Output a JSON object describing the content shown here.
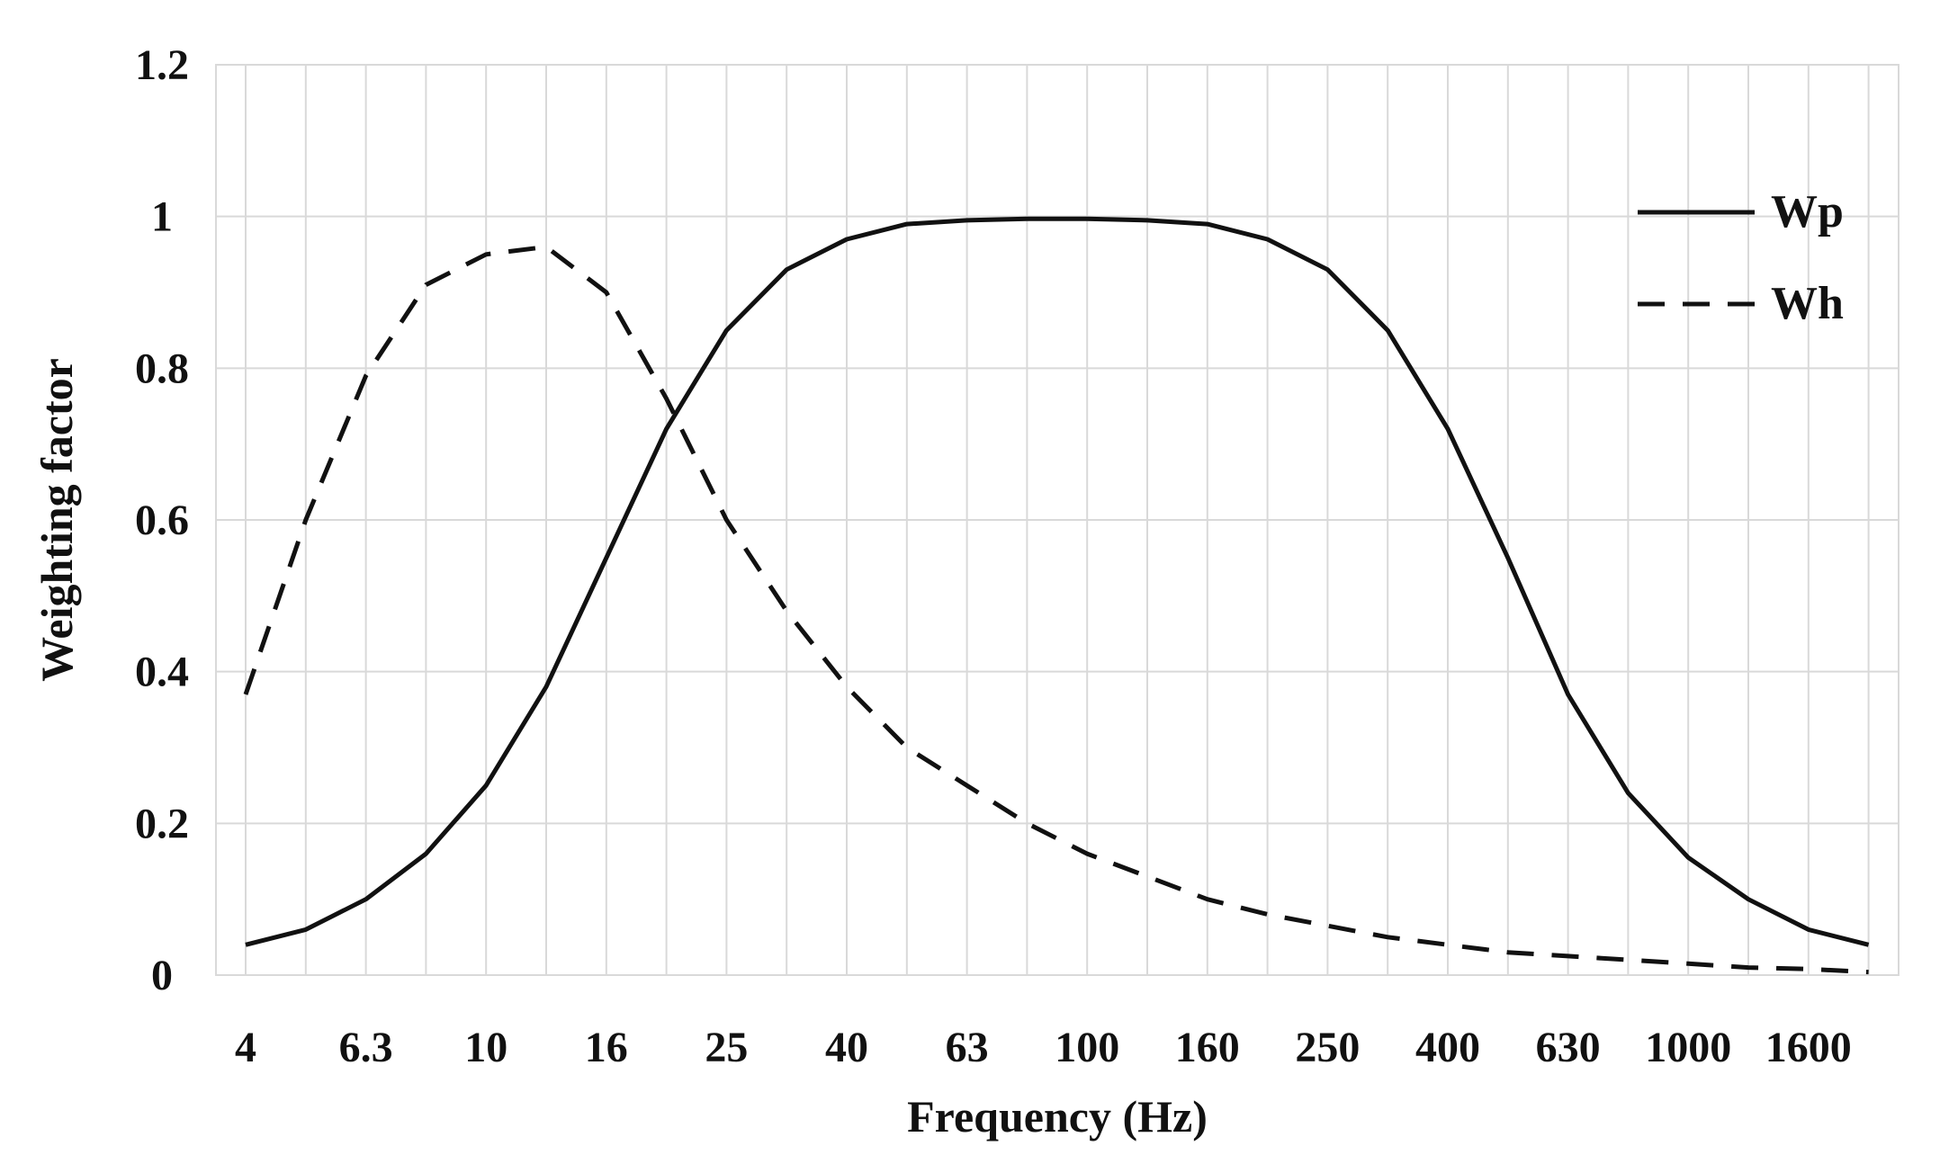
{
  "chart_data": {
    "type": "line",
    "xlabel": "Frequency (Hz)",
    "ylabel": "Weighting factor",
    "x_scale": "log (1/3-octave bands)",
    "x": [
      4,
      5,
      6.3,
      8,
      10,
      12.5,
      16,
      20,
      25,
      31.5,
      40,
      50,
      63,
      80,
      100,
      125,
      160,
      200,
      250,
      315,
      400,
      500,
      630,
      800,
      1000,
      1250,
      1600,
      2000
    ],
    "x_tick_labels": [
      "4",
      "6.3",
      "10",
      "16",
      "25",
      "40",
      "63",
      "100",
      "160",
      "250",
      "400",
      "630",
      "1000",
      "1600"
    ],
    "y_ticks": [
      "0",
      "0.2",
      "0.4",
      "0.6",
      "0.8",
      "1",
      "1.2"
    ],
    "ylim": [
      0,
      1.2
    ],
    "grid": true,
    "legend_position": "top-right",
    "series": [
      {
        "name": "Wp",
        "style": "solid",
        "color": "#111111",
        "values": [
          0.04,
          0.06,
          0.1,
          0.16,
          0.25,
          0.38,
          0.55,
          0.72,
          0.85,
          0.93,
          0.97,
          0.99,
          0.995,
          0.997,
          0.997,
          0.995,
          0.99,
          0.97,
          0.93,
          0.85,
          0.72,
          0.55,
          0.37,
          0.24,
          0.155,
          0.1,
          0.06,
          0.04
        ]
      },
      {
        "name": "Wh",
        "style": "dashed",
        "color": "#111111",
        "values": [
          0.37,
          0.6,
          0.79,
          0.91,
          0.95,
          0.96,
          0.9,
          0.76,
          0.6,
          0.48,
          0.38,
          0.3,
          0.25,
          0.2,
          0.16,
          0.13,
          0.1,
          0.08,
          0.065,
          0.05,
          0.04,
          0.03,
          0.025,
          0.02,
          0.015,
          0.01,
          0.008,
          0.004
        ]
      }
    ]
  }
}
